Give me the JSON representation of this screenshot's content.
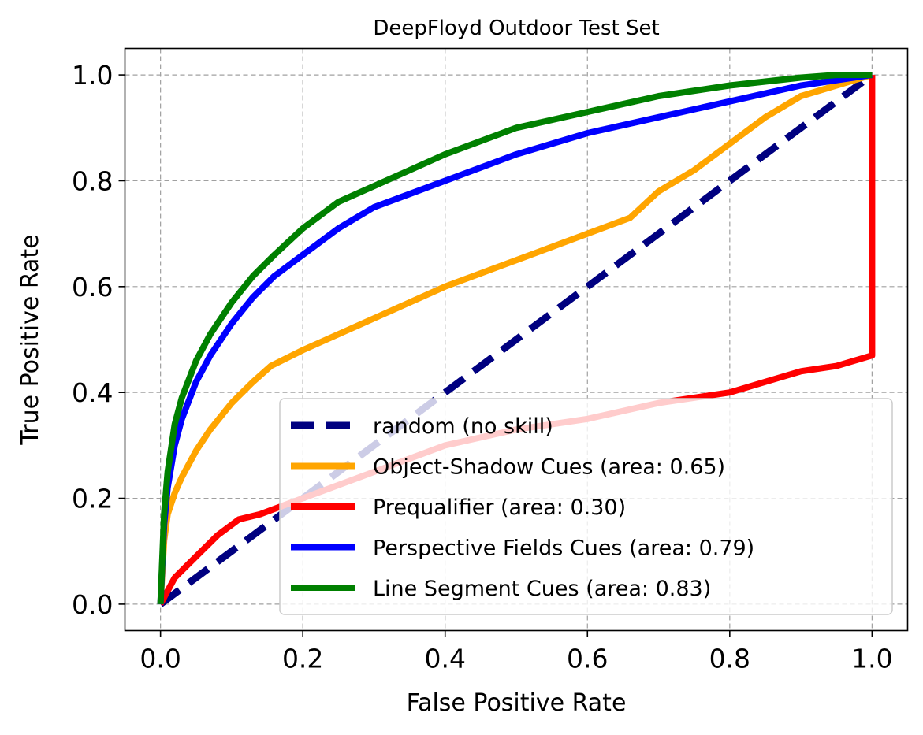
{
  "chart_data": {
    "type": "line",
    "title": "DeepFloyd Outdoor Test Set",
    "xlabel": "False Positive Rate",
    "ylabel": "True Positive Rate",
    "xlim": [
      -0.05,
      1.05
    ],
    "ylim": [
      -0.05,
      1.05
    ],
    "xticks": [
      0.0,
      0.2,
      0.4,
      0.6,
      0.8,
      1.0
    ],
    "xtick_labels": [
      "0.0",
      "0.2",
      "0.4",
      "0.6",
      "0.8",
      "1.0"
    ],
    "yticks": [
      0.0,
      0.2,
      0.4,
      0.6,
      0.8,
      1.0
    ],
    "ytick_labels": [
      "0.0",
      "0.2",
      "0.4",
      "0.6",
      "0.8",
      "1.0"
    ],
    "grid": true,
    "legend_position": "lower-right",
    "series": [
      {
        "name": "random (no skill)",
        "color": "#000080",
        "style": "dashed",
        "x": [
          0.0,
          1.0
        ],
        "y": [
          0.0,
          1.0
        ]
      },
      {
        "name": "Object-Shadow Cues (area: 0.65)",
        "color": "#ffa500",
        "style": "solid",
        "x": [
          0.0,
          0.005,
          0.01,
          0.02,
          0.03,
          0.05,
          0.07,
          0.1,
          0.13,
          0.155,
          0.2,
          0.3,
          0.4,
          0.5,
          0.6,
          0.66,
          0.7,
          0.75,
          0.8,
          0.85,
          0.9,
          0.95,
          1.0
        ],
        "y": [
          0.0,
          0.12,
          0.17,
          0.21,
          0.24,
          0.29,
          0.33,
          0.38,
          0.42,
          0.45,
          0.48,
          0.54,
          0.6,
          0.65,
          0.7,
          0.73,
          0.78,
          0.82,
          0.87,
          0.92,
          0.96,
          0.98,
          1.0
        ]
      },
      {
        "name": "Prequalifier (area: 0.30)",
        "color": "#ff0000",
        "style": "solid",
        "x": [
          0.0,
          0.02,
          0.05,
          0.08,
          0.11,
          0.14,
          0.2,
          0.3,
          0.4,
          0.5,
          0.6,
          0.7,
          0.8,
          0.85,
          0.9,
          0.95,
          1.0,
          1.0
        ],
        "y": [
          0.0,
          0.05,
          0.09,
          0.13,
          0.16,
          0.17,
          0.2,
          0.25,
          0.3,
          0.33,
          0.35,
          0.38,
          0.4,
          0.42,
          0.44,
          0.45,
          0.47,
          1.0
        ]
      },
      {
        "name": "Perspective Fields Cues (area: 0.79)",
        "color": "#0000ff",
        "style": "solid",
        "x": [
          0.0,
          0.005,
          0.01,
          0.02,
          0.03,
          0.05,
          0.07,
          0.1,
          0.13,
          0.16,
          0.2,
          0.25,
          0.3,
          0.4,
          0.5,
          0.6,
          0.7,
          0.8,
          0.9,
          0.95,
          1.0
        ],
        "y": [
          0.0,
          0.15,
          0.22,
          0.3,
          0.35,
          0.42,
          0.47,
          0.53,
          0.58,
          0.62,
          0.66,
          0.71,
          0.75,
          0.8,
          0.85,
          0.89,
          0.92,
          0.95,
          0.98,
          0.99,
          1.0
        ]
      },
      {
        "name": "Line Segment Cues (area: 0.83)",
        "color": "#008000",
        "style": "solid",
        "x": [
          0.0,
          0.005,
          0.01,
          0.02,
          0.03,
          0.05,
          0.07,
          0.1,
          0.13,
          0.16,
          0.2,
          0.25,
          0.3,
          0.4,
          0.5,
          0.6,
          0.7,
          0.8,
          0.9,
          0.95,
          1.0
        ],
        "y": [
          0.0,
          0.17,
          0.25,
          0.34,
          0.39,
          0.46,
          0.51,
          0.57,
          0.62,
          0.66,
          0.71,
          0.76,
          0.79,
          0.85,
          0.9,
          0.93,
          0.96,
          0.98,
          0.995,
          1.0,
          1.0
        ]
      }
    ]
  }
}
